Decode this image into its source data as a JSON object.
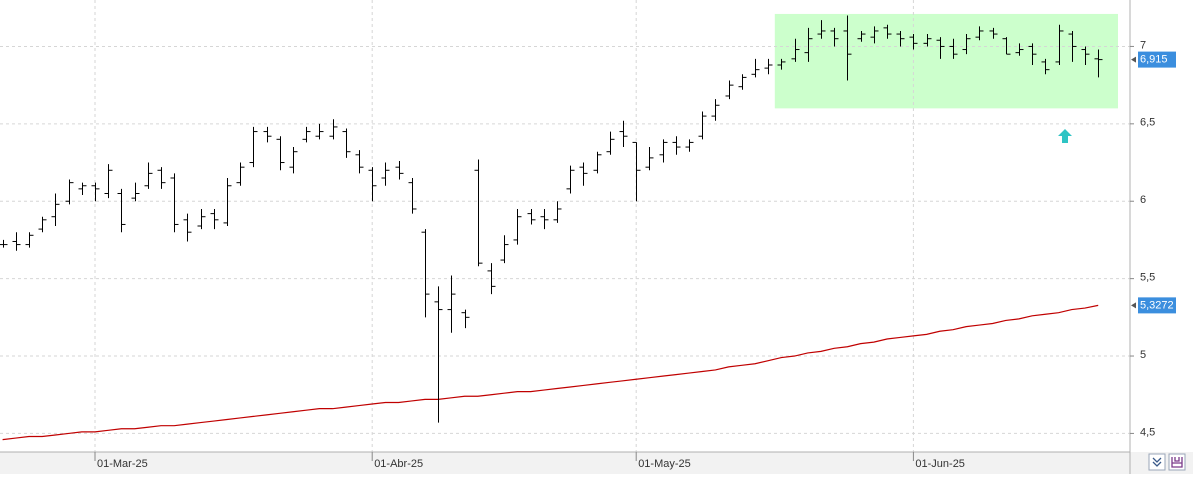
{
  "chart_data": {
    "type": "ohlc",
    "x": [
      "2025-02-20",
      "2025-02-21",
      "2025-02-24",
      "2025-02-25",
      "2025-02-26",
      "2025-02-27",
      "2025-02-28",
      "2025-03-03",
      "2025-03-04",
      "2025-03-05",
      "2025-03-06",
      "2025-03-07",
      "2025-03-10",
      "2025-03-11",
      "2025-03-12",
      "2025-03-13",
      "2025-03-14",
      "2025-03-17",
      "2025-03-18",
      "2025-03-19",
      "2025-03-20",
      "2025-03-21",
      "2025-03-24",
      "2025-03-25",
      "2025-03-26",
      "2025-03-27",
      "2025-03-28",
      "2025-03-31",
      "2025-04-01",
      "2025-04-02",
      "2025-04-03",
      "2025-04-04",
      "2025-04-07",
      "2025-04-08",
      "2025-04-09",
      "2025-04-10",
      "2025-04-11",
      "2025-04-14",
      "2025-04-15",
      "2025-04-16",
      "2025-04-17",
      "2025-04-22",
      "2025-04-23",
      "2025-04-24",
      "2025-04-25",
      "2025-04-28",
      "2025-04-29",
      "2025-04-30",
      "2025-05-02",
      "2025-05-05",
      "2025-05-06",
      "2025-05-07",
      "2025-05-08",
      "2025-05-09",
      "2025-05-12",
      "2025-05-13",
      "2025-05-14",
      "2025-05-15",
      "2025-05-16",
      "2025-05-19",
      "2025-05-20",
      "2025-05-21",
      "2025-05-22",
      "2025-05-23",
      "2025-05-26",
      "2025-05-27",
      "2025-05-28",
      "2025-05-29",
      "2025-05-30",
      "2025-06-02",
      "2025-06-03",
      "2025-06-04",
      "2025-06-05",
      "2025-06-06",
      "2025-06-09",
      "2025-06-10",
      "2025-06-11",
      "2025-06-12",
      "2025-06-13",
      "2025-06-16",
      "2025-06-17",
      "2025-06-18",
      "2025-06-19",
      "2025-06-20"
    ],
    "open": [
      5.72,
      5.74,
      5.72,
      5.82,
      5.9,
      6.0,
      6.08,
      6.1,
      6.05,
      6.05,
      6.02,
      6.1,
      6.2,
      6.15,
      5.88,
      5.84,
      5.92,
      5.86,
      6.12,
      6.25,
      6.45,
      6.4,
      6.22,
      6.4,
      6.42,
      6.42,
      6.45,
      6.3,
      6.2,
      6.15,
      6.22,
      6.12,
      5.8,
      5.35,
      5.3,
      5.28,
      6.2,
      5.55,
      5.62,
      5.75,
      5.92,
      5.9,
      5.88,
      6.08,
      6.22,
      6.2,
      6.32,
      6.45,
      6.38,
      6.22,
      6.3,
      6.38,
      6.35,
      6.42,
      6.55,
      6.68,
      6.74,
      6.82,
      6.86,
      6.88,
      6.92,
      6.96,
      7.08,
      7.1,
      7.1,
      7.05,
      7.06,
      7.12,
      7.08,
      7.06,
      7.02,
      7.04,
      7.0,
      6.98,
      7.06,
      7.1,
      7.05,
      6.96,
      7.0,
      6.9,
      6.9,
      7.08,
      6.98,
      6.92
    ],
    "high": [
      5.75,
      5.8,
      5.8,
      5.9,
      6.05,
      6.14,
      6.12,
      6.12,
      6.24,
      6.08,
      6.12,
      6.25,
      6.22,
      6.18,
      5.92,
      5.95,
      5.95,
      6.15,
      6.25,
      6.48,
      6.48,
      6.42,
      6.35,
      6.48,
      6.5,
      6.53,
      6.47,
      6.33,
      6.22,
      6.25,
      6.26,
      6.15,
      5.82,
      5.45,
      5.52,
      5.3,
      6.27,
      5.6,
      5.78,
      5.95,
      5.95,
      5.95,
      6.0,
      6.23,
      6.25,
      6.32,
      6.45,
      6.52,
      6.38,
      6.35,
      6.4,
      6.42,
      6.4,
      6.58,
      6.66,
      6.78,
      6.82,
      6.92,
      6.92,
      6.92,
      7.05,
      7.12,
      7.17,
      7.12,
      7.2,
      7.1,
      7.13,
      7.14,
      7.1,
      7.08,
      7.08,
      7.06,
      7.05,
      7.08,
      7.13,
      7.12,
      7.06,
      7.02,
      7.02,
      6.92,
      7.14,
      7.1,
      7.0,
      6.98
    ],
    "low": [
      5.7,
      5.68,
      5.7,
      5.8,
      5.84,
      5.98,
      6.04,
      6.0,
      6.02,
      5.8,
      6.0,
      6.08,
      6.08,
      5.8,
      5.74,
      5.82,
      5.82,
      5.84,
      6.1,
      6.22,
      6.38,
      6.2,
      6.18,
      6.38,
      6.4,
      6.4,
      6.28,
      6.18,
      6.0,
      6.1,
      6.14,
      5.92,
      5.25,
      4.57,
      5.15,
      5.18,
      5.58,
      5.4,
      5.6,
      5.72,
      5.85,
      5.82,
      5.86,
      6.05,
      6.1,
      6.18,
      6.3,
      6.35,
      6.0,
      6.2,
      6.25,
      6.3,
      6.32,
      6.4,
      6.52,
      6.66,
      6.72,
      6.8,
      6.82,
      6.85,
      6.9,
      6.9,
      7.05,
      7.0,
      6.78,
      7.03,
      7.02,
      7.05,
      7.0,
      6.98,
      7.0,
      6.92,
      6.92,
      6.95,
      7.04,
      7.05,
      6.95,
      6.94,
      6.88,
      6.82,
      6.88,
      6.9,
      6.88,
      6.8
    ],
    "close": [
      5.72,
      5.72,
      5.78,
      5.88,
      5.98,
      6.12,
      6.1,
      6.08,
      6.2,
      5.85,
      6.05,
      6.18,
      6.12,
      5.85,
      5.8,
      5.9,
      5.88,
      6.1,
      6.22,
      6.45,
      6.42,
      6.25,
      6.32,
      6.45,
      6.45,
      6.48,
      6.32,
      6.22,
      6.1,
      6.2,
      6.18,
      5.95,
      5.4,
      5.3,
      5.4,
      5.25,
      5.6,
      5.45,
      5.72,
      5.9,
      5.88,
      5.88,
      5.95,
      6.2,
      6.18,
      6.3,
      6.4,
      6.42,
      6.2,
      6.28,
      6.38,
      6.35,
      6.38,
      6.55,
      6.62,
      6.75,
      6.8,
      6.85,
      6.88,
      6.9,
      6.98,
      7.05,
      7.1,
      7.05,
      6.95,
      7.08,
      7.1,
      7.08,
      7.05,
      7.02,
      7.05,
      7.0,
      6.95,
      7.05,
      7.1,
      7.08,
      6.95,
      6.98,
      6.95,
      6.85,
      7.1,
      7.0,
      6.95,
      6.915
    ],
    "color": "#000000",
    "ma": {
      "color": "#c00000",
      "values": [
        4.46,
        4.47,
        4.48,
        4.48,
        4.49,
        4.5,
        4.51,
        4.51,
        4.52,
        4.53,
        4.53,
        4.54,
        4.55,
        4.55,
        4.56,
        4.57,
        4.58,
        4.59,
        4.6,
        4.61,
        4.62,
        4.63,
        4.64,
        4.65,
        4.66,
        4.66,
        4.67,
        4.68,
        4.69,
        4.7,
        4.7,
        4.71,
        4.72,
        4.72,
        4.73,
        4.74,
        4.74,
        4.75,
        4.76,
        4.77,
        4.77,
        4.78,
        4.79,
        4.8,
        4.81,
        4.82,
        4.83,
        4.84,
        4.85,
        4.86,
        4.87,
        4.88,
        4.89,
        4.9,
        4.91,
        4.93,
        4.94,
        4.95,
        4.97,
        4.99,
        5.0,
        5.02,
        5.03,
        5.05,
        5.06,
        5.08,
        5.09,
        5.11,
        5.12,
        5.13,
        5.14,
        5.16,
        5.17,
        5.19,
        5.2,
        5.21,
        5.23,
        5.24,
        5.26,
        5.27,
        5.28,
        5.3,
        5.31,
        5.3272
      ]
    },
    "highlight": {
      "x": [
        "2025-05-19",
        "2025-06-20"
      ],
      "ylim": [
        6.6,
        7.21
      ],
      "color": "#ccffcc"
    },
    "markers": [
      {
        "value": 6.915,
        "label": "6,915",
        "color": "#3b8ede"
      },
      {
        "value": 5.3272,
        "label": "5,3272",
        "color": "#3b8ede"
      }
    ],
    "ylim": [
      4.38,
      7.3
    ],
    "yticks": [
      {
        "value": 4.5,
        "label": "4,5"
      },
      5,
      {
        "value": 5.5,
        "label": "5,5"
      },
      6,
      {
        "value": 6.5,
        "label": "6,5"
      },
      7
    ],
    "xticks": [
      {
        "value": "2025-03-01",
        "label": "01-Mar-25"
      },
      {
        "value": "2025-04-01",
        "label": "01-Abr-25"
      },
      {
        "value": "2025-05-01",
        "label": "01-May-25"
      },
      {
        "value": "2025-06-01",
        "label": "01-Jun-25"
      }
    ],
    "grid": true
  }
}
